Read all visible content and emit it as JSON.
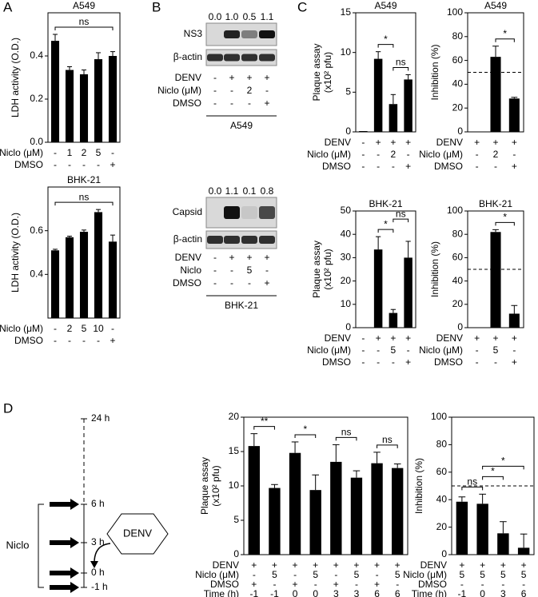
{
  "panels": [
    "A",
    "B",
    "C",
    "D"
  ],
  "chart_data": [
    {
      "type": "bar",
      "title": "A549",
      "y_label": "LDH activity (O.D.)",
      "ylim": [
        0,
        0.6
      ],
      "yticks": [
        {
          "value": 0,
          "label": "0.0"
        },
        0.2,
        0.4
      ],
      "color": "#000000",
      "values": [
        0.47,
        0.335,
        0.315,
        0.385,
        0.4
      ],
      "errors": [
        0.03,
        0.015,
        0.02,
        0.03,
        0.02
      ],
      "conditions": [
        {
          "label": "Niclo (μM)",
          "values": [
            "-",
            "1",
            "2",
            "5",
            "-"
          ]
        },
        {
          "label": "DMSO",
          "values": [
            "-",
            "-",
            "-",
            "-",
            "+"
          ]
        }
      ],
      "brackets": [
        {
          "text": "ns",
          "between": [
            0,
            4
          ]
        }
      ]
    },
    {
      "type": "bar",
      "title": "BHK-21",
      "y_label": "LDH activity (O.D.)",
      "ylim": [
        0.2,
        0.8
      ],
      "yticks": [
        0.4,
        0.6
      ],
      "color": "#000000",
      "values": [
        0.51,
        0.57,
        0.595,
        0.685,
        0.55
      ],
      "errors": [
        0.005,
        0.005,
        0.008,
        0.012,
        0.03
      ],
      "conditions": [
        {
          "label": "Niclo (μM)",
          "values": [
            "-",
            "2",
            "5",
            "10",
            "-"
          ]
        },
        {
          "label": "DMSO",
          "values": [
            "-",
            "-",
            "-",
            "-",
            "+"
          ]
        }
      ],
      "brackets": [
        {
          "text": "ns",
          "between": [
            0,
            4
          ]
        }
      ]
    },
    {
      "type": "bar",
      "title": "A549",
      "y_label": [
        "Plaque assay",
        "(x10² pfu)"
      ],
      "ylim": [
        0,
        15
      ],
      "yticks": [
        0,
        5,
        10,
        15
      ],
      "color": "#000000",
      "values": [
        0.1,
        9.2,
        3.5,
        6.6
      ],
      "errors": [
        0,
        0.9,
        1.2,
        0.6
      ],
      "conditions": [
        {
          "label": "DENV",
          "values": [
            "-",
            "+",
            "+",
            "+"
          ]
        },
        {
          "label": "Niclo (μM)",
          "values": [
            "-",
            "-",
            "2",
            "-"
          ]
        },
        {
          "label": "DMSO",
          "values": [
            "-",
            "-",
            "-",
            "+"
          ]
        }
      ],
      "brackets": [
        {
          "text": "*",
          "between": [
            1,
            2
          ]
        },
        {
          "text": "ns",
          "between": [
            2,
            3
          ]
        }
      ]
    },
    {
      "type": "bar",
      "title": "A549",
      "y_label": "Inhibition (%)",
      "ylim": [
        0,
        100
      ],
      "yticks": [
        0,
        20,
        40,
        60,
        80,
        100
      ],
      "ref_line": 50,
      "color": "#000000",
      "values": [
        null,
        63,
        28
      ],
      "errors": [
        null,
        9,
        1
      ],
      "conditions": [
        {
          "label": "DENV",
          "values": [
            "+",
            "+",
            "+"
          ]
        },
        {
          "label": "Niclo (μM)",
          "values": [
            "-",
            "2",
            "-"
          ]
        },
        {
          "label": "DMSO",
          "values": [
            "-",
            "-",
            "+"
          ]
        }
      ],
      "brackets": [
        {
          "text": "*",
          "between": [
            1,
            2
          ]
        }
      ]
    },
    {
      "type": "bar",
      "title": "BHK-21",
      "y_label": [
        "Plaque assay",
        "(x10² pfu)"
      ],
      "ylim": [
        0,
        50
      ],
      "yticks": [
        0,
        10,
        20,
        30,
        40,
        50
      ],
      "color": "#000000",
      "values": [
        0,
        33.5,
        6.3,
        30
      ],
      "errors": [
        0,
        5.5,
        1.5,
        7
      ],
      "conditions": [
        {
          "label": "DENV",
          "values": [
            "-",
            "+",
            "+",
            "+"
          ]
        },
        {
          "label": "Niclo (μM)",
          "values": [
            "-",
            "-",
            "5",
            "-"
          ]
        },
        {
          "label": "DMSO",
          "values": [
            "-",
            "-",
            "-",
            "+"
          ]
        }
      ],
      "brackets": [
        {
          "text": "*",
          "between": [
            1,
            2
          ]
        },
        {
          "text": "ns",
          "between": [
            2,
            3
          ]
        }
      ]
    },
    {
      "type": "bar",
      "title": "BHK-21",
      "y_label": "Inhibition (%)",
      "ylim": [
        0,
        100
      ],
      "yticks": [
        0,
        20,
        40,
        60,
        80,
        100
      ],
      "ref_line": 50,
      "color": "#000000",
      "values": [
        null,
        82,
        12
      ],
      "errors": [
        null,
        2,
        7
      ],
      "conditions": [
        {
          "label": "DENV",
          "values": [
            "+",
            "+",
            "+"
          ]
        },
        {
          "label": "Niclo (μM)",
          "values": [
            "-",
            "5",
            "-"
          ]
        },
        {
          "label": "DMSO",
          "values": [
            "-",
            "-",
            "+"
          ]
        }
      ],
      "brackets": [
        {
          "text": "*",
          "between": [
            1,
            2
          ]
        }
      ]
    },
    {
      "type": "bar",
      "y_label": [
        "Plaque assay",
        "(x10² pfu)"
      ],
      "ylim": [
        0,
        20
      ],
      "yticks": [
        0,
        5,
        10,
        15,
        20
      ],
      "color": "#000000",
      "values": [
        15.8,
        9.7,
        14.8,
        9.4,
        13.5,
        11.2,
        13.3,
        12.6
      ],
      "errors": [
        1.8,
        0.5,
        1.6,
        2.2,
        2.5,
        1.0,
        1.6,
        0.6
      ],
      "conditions": [
        {
          "label": "DENV",
          "values": [
            "+",
            "+",
            "+",
            "+",
            "+",
            "+",
            "+",
            "+"
          ]
        },
        {
          "label": "Niclo (μM)",
          "values": [
            "-",
            "5",
            "-",
            "5",
            "-",
            "5",
            "-",
            "5"
          ]
        },
        {
          "label": "DMSO",
          "values": [
            "+",
            "-",
            "+",
            "-",
            "+",
            "-",
            "+",
            "-"
          ]
        },
        {
          "label": "Time (h)",
          "values": [
            "-1",
            "-1",
            "0",
            "0",
            "3",
            "3",
            "6",
            "6"
          ]
        }
      ],
      "brackets": [
        {
          "text": "**",
          "between": [
            0,
            1
          ]
        },
        {
          "text": "*",
          "between": [
            2,
            3
          ]
        },
        {
          "text": "ns",
          "between": [
            4,
            5
          ]
        },
        {
          "text": "ns",
          "between": [
            6,
            7
          ]
        }
      ]
    },
    {
      "type": "bar",
      "y_label": "Inhibition (%)",
      "ylim": [
        0,
        100
      ],
      "yticks": [
        0,
        20,
        40,
        60,
        80,
        100
      ],
      "ref_line": 50,
      "color": "#000000",
      "values": [
        38.5,
        37,
        15.5,
        5
      ],
      "errors": [
        3.5,
        7,
        8.5,
        10
      ],
      "conditions": [
        {
          "label": "DENV",
          "values": [
            "+",
            "+",
            "+",
            "+"
          ]
        },
        {
          "label": "Niclo (μM)",
          "values": [
            "5",
            "5",
            "5",
            "5"
          ]
        },
        {
          "label": "DMSO",
          "values": [
            "-",
            "-",
            "-",
            "-"
          ]
        },
        {
          "label": "Time (h)",
          "values": [
            "-1",
            "0",
            "3",
            "6"
          ]
        }
      ],
      "brackets": [
        {
          "text": "ns",
          "between": [
            0,
            1
          ]
        },
        {
          "text": "*",
          "between": [
            1,
            2
          ]
        },
        {
          "text": "*",
          "between": [
            1,
            3
          ]
        }
      ]
    }
  ],
  "blots": [
    {
      "cell_line": "A549",
      "quant": [
        "0.0",
        "1.0",
        "0.5",
        "1.1"
      ],
      "bands": [
        "NS3",
        "β-actin"
      ],
      "conditions": [
        {
          "label": "DENV",
          "values": [
            "-",
            "+",
            "+",
            "+"
          ]
        },
        {
          "label": "Niclo (μM)",
          "values": [
            "-",
            "-",
            "2",
            "-"
          ]
        },
        {
          "label": "DMSO",
          "values": [
            "-",
            "-",
            "-",
            "+"
          ]
        }
      ]
    },
    {
      "cell_line": "BHK-21",
      "quant": [
        "0.0",
        "1.1",
        "0.1",
        "0.8"
      ],
      "bands": [
        "Capsid",
        "β-actin"
      ],
      "conditions": [
        {
          "label": "DENV",
          "values": [
            "-",
            "+",
            "+",
            "+"
          ]
        },
        {
          "label": "Niclo",
          "values": [
            "-",
            "-",
            "5",
            "-"
          ]
        },
        {
          "label": "DMSO",
          "values": [
            "-",
            "-",
            "-",
            "+"
          ]
        }
      ]
    }
  ],
  "timeline": {
    "times": [
      "24 h",
      "6 h",
      "3 h",
      "0 h",
      "-1 h"
    ],
    "virus": "DENV",
    "treatment": "Niclo"
  }
}
